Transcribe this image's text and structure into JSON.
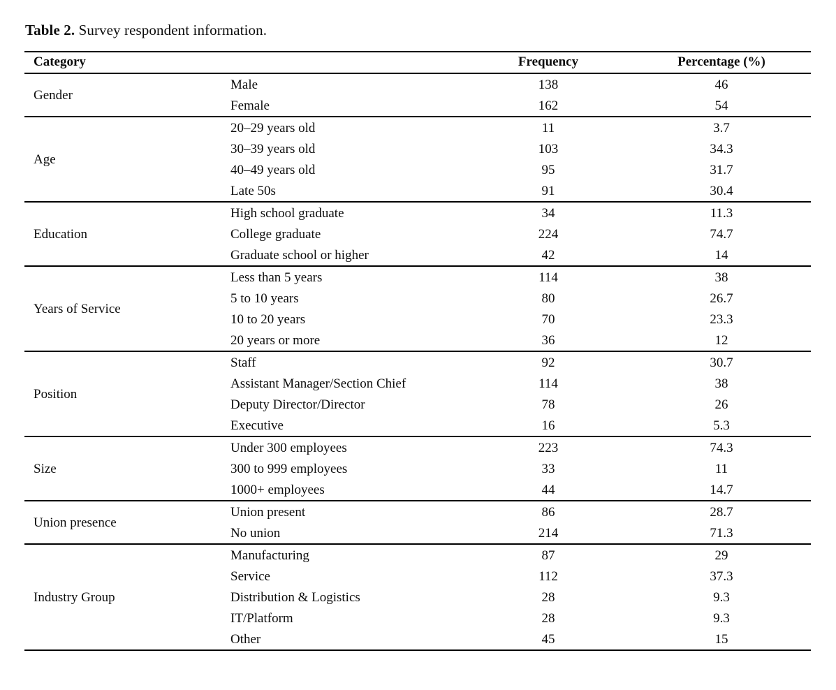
{
  "page": {
    "caption_label": "Table 2.",
    "caption_text": " Survey respondent information."
  },
  "table": {
    "headers": {
      "category": "Category",
      "frequency": "Frequency",
      "percentage": "Percentage (%)"
    },
    "groups": [
      {
        "category": "Gender",
        "rows": [
          {
            "label": "Male",
            "frequency": "138",
            "percentage": "46"
          },
          {
            "label": "Female",
            "frequency": "162",
            "percentage": "54"
          }
        ]
      },
      {
        "category": "Age",
        "rows": [
          {
            "label": "20–29 years old",
            "frequency": "11",
            "percentage": "3.7"
          },
          {
            "label": "30–39 years old",
            "frequency": "103",
            "percentage": "34.3"
          },
          {
            "label": "40–49 years old",
            "frequency": "95",
            "percentage": "31.7"
          },
          {
            "label": "Late 50s",
            "frequency": "91",
            "percentage": "30.4"
          }
        ]
      },
      {
        "category": "Education",
        "rows": [
          {
            "label": "High school graduate",
            "frequency": "34",
            "percentage": "11.3"
          },
          {
            "label": "College graduate",
            "frequency": "224",
            "percentage": "74.7"
          },
          {
            "label": "Graduate school or higher",
            "frequency": "42",
            "percentage": "14"
          }
        ]
      },
      {
        "category": "Years of Service",
        "rows": [
          {
            "label": "Less than 5 years",
            "frequency": "114",
            "percentage": "38"
          },
          {
            "label": "5 to 10 years",
            "frequency": "80",
            "percentage": "26.7"
          },
          {
            "label": "10 to 20 years",
            "frequency": "70",
            "percentage": "23.3"
          },
          {
            "label": "20 years or more",
            "frequency": "36",
            "percentage": "12"
          }
        ]
      },
      {
        "category": "Position",
        "rows": [
          {
            "label": "Staff",
            "frequency": "92",
            "percentage": "30.7"
          },
          {
            "label": "Assistant Manager/Section Chief",
            "frequency": "114",
            "percentage": "38"
          },
          {
            "label": "Deputy Director/Director",
            "frequency": "78",
            "percentage": "26"
          },
          {
            "label": "Executive",
            "frequency": "16",
            "percentage": "5.3"
          }
        ]
      },
      {
        "category": "Size",
        "rows": [
          {
            "label": "Under 300 employees",
            "frequency": "223",
            "percentage": "74.3"
          },
          {
            "label": "300 to 999 employees",
            "frequency": "33",
            "percentage": "11"
          },
          {
            "label": "1000+ employees",
            "frequency": "44",
            "percentage": "14.7"
          }
        ]
      },
      {
        "category": "Union presence",
        "rows": [
          {
            "label": "Union present",
            "frequency": "86",
            "percentage": "28.7"
          },
          {
            "label": "No union",
            "frequency": "214",
            "percentage": "71.3"
          }
        ]
      },
      {
        "category": "Industry Group",
        "rows": [
          {
            "label": "Manufacturing",
            "frequency": "87",
            "percentage": "29"
          },
          {
            "label": "Service",
            "frequency": "112",
            "percentage": "37.3"
          },
          {
            "label": "Distribution & Logistics",
            "frequency": "28",
            "percentage": "9.3"
          },
          {
            "label": "IT/Platform",
            "frequency": "28",
            "percentage": "9.3"
          },
          {
            "label": "Other",
            "frequency": "45",
            "percentage": "15"
          }
        ]
      }
    ]
  }
}
